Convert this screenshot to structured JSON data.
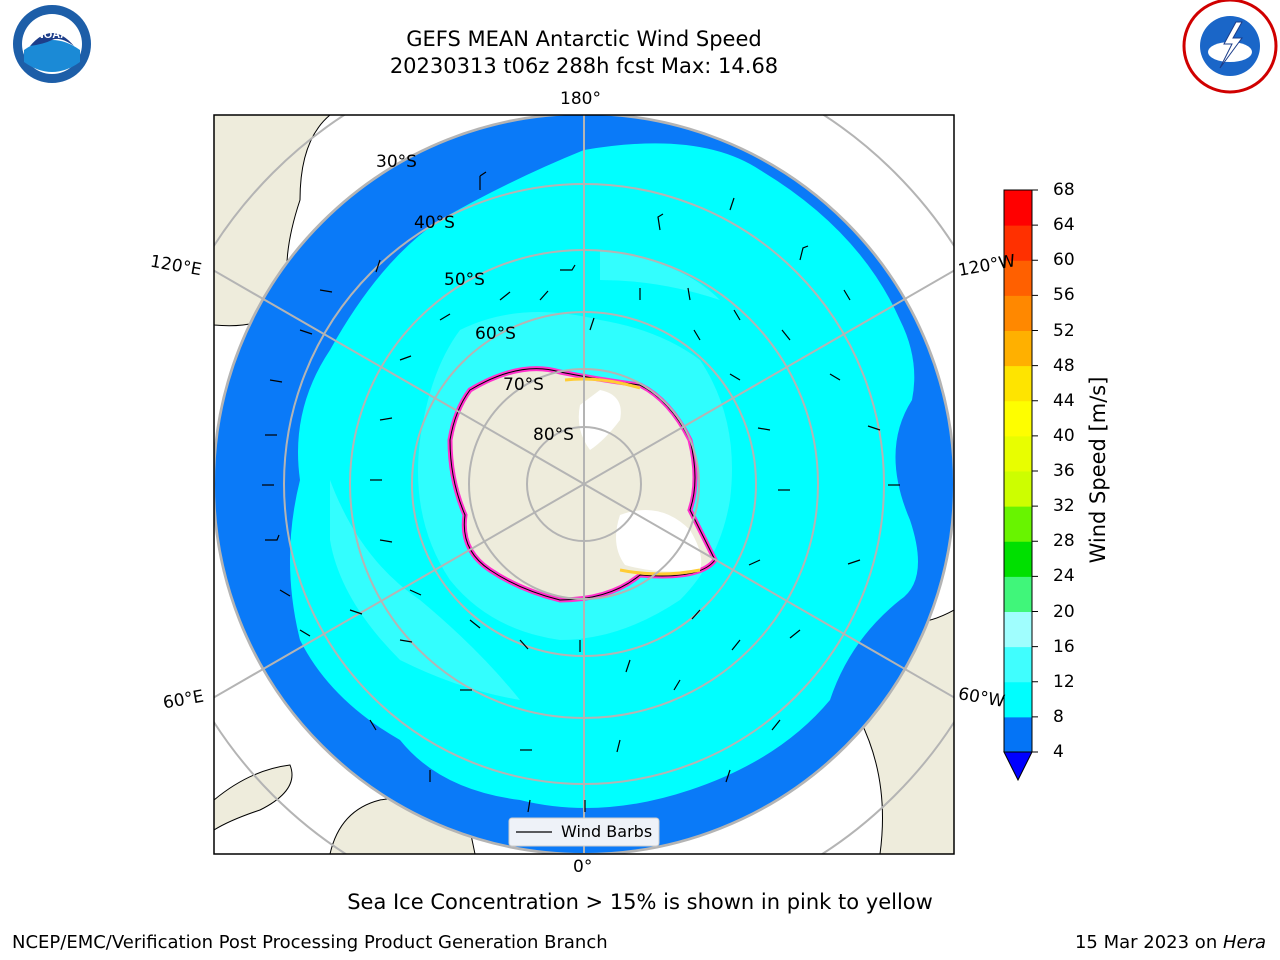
{
  "header": {
    "title_line1": "GEFS MEAN Antarctic Wind Speed",
    "title_line2": "20230313 t06z 288h fcst   Max: 14.68"
  },
  "map": {
    "projection": "south-polar-stereographic",
    "longitude_labels": {
      "top": "180°",
      "bottom": "0°",
      "left_upper": "120°E",
      "left_lower": "60°E",
      "right_upper": "120°W",
      "right_lower": "60°W"
    },
    "latitude_labels": [
      "30°S",
      "40°S",
      "50°S",
      "60°S",
      "70°S",
      "80°S"
    ],
    "legend_label": "Wind Barbs",
    "colors": {
      "ocean_low": "#0a7af8",
      "ocean_mid": "#00ffff",
      "ocean_high": "#55fefe",
      "land": "#eeecdc",
      "ice": "#ffffff",
      "sea_ice_edge": "#ff33cc",
      "grid": "#b4b4b4"
    }
  },
  "colorbar": {
    "label": "Wind Speed [m/s]",
    "ticks": [
      "4",
      "8",
      "12",
      "16",
      "20",
      "24",
      "28",
      "32",
      "36",
      "40",
      "44",
      "48",
      "52",
      "56",
      "60",
      "64",
      "68"
    ],
    "colors": [
      "#0474f6",
      "#00fefe",
      "#40fefe",
      "#a0fefe",
      "#40f67a",
      "#00e000",
      "#68f400",
      "#cdfe00",
      "#e8fe00",
      "#fefe00",
      "#fee400",
      "#ffb000",
      "#ff8800",
      "#ff6000",
      "#ff3000",
      "#ff0000"
    ],
    "extend_color": "#0000ff"
  },
  "caption": "Sea Ice Concentration > 15% is shown in pink to yellow",
  "footer": {
    "left": "NCEP/EMC/Verification Post Processing Product Generation Branch",
    "date": "15 Mar 2023 on ",
    "machine": "Hera"
  },
  "logos": {
    "left": "NOAA",
    "right": "NATIONAL WEATHER SERVICE"
  }
}
